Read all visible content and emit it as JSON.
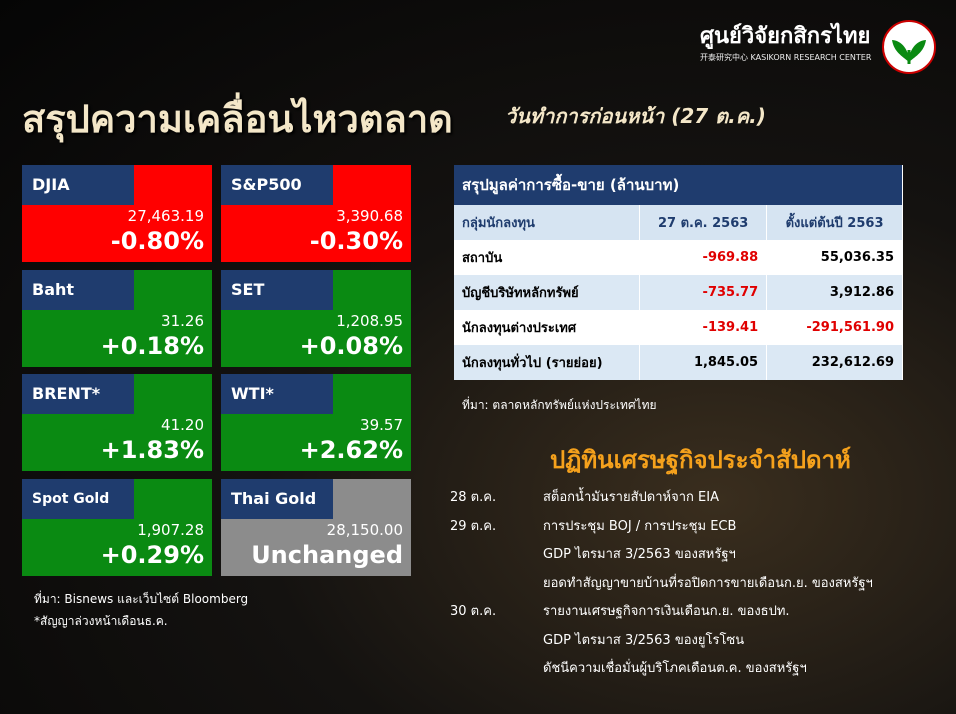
{
  "header": {
    "org_name": "ศูนย์วิจัยกสิกรไทย",
    "org_subname": "开泰研究中心 KASIKORN RESEARCH CENTER",
    "title": "สรุปความเคลื่อนไหวตลาด",
    "subtitle": "วันทำการก่อนหน้า (27 ต.ค.)"
  },
  "tiles": [
    {
      "name": "DJIA",
      "value": "27,463.19",
      "change": "-0.80%",
      "color": "#ff0000"
    },
    {
      "name": "S&P500",
      "value": "3,390.68",
      "change": "-0.30%",
      "color": "#ff0000"
    },
    {
      "name": "Baht",
      "value": "31.26",
      "change": "+0.18%",
      "color": "#0a8a12"
    },
    {
      "name": "SET",
      "value": "1,208.95",
      "change": "+0.08%",
      "color": "#0a8a12"
    },
    {
      "name": "BRENT*",
      "value": "41.20",
      "change": "+1.83%",
      "color": "#0a8a12"
    },
    {
      "name": "WTI*",
      "value": "39.57",
      "change": "+2.62%",
      "color": "#0a8a12"
    },
    {
      "name": "Spot Gold",
      "value": "1,907.28",
      "change": "+0.29%",
      "color": "#0a8a12"
    },
    {
      "name": "Thai Gold",
      "value": "28,150.00",
      "change": "Unchanged",
      "color": "#8c8c8c"
    }
  ],
  "tile_notes": [
    "ที่มา: Bisnews และเว็บไซต์ Bloomberg",
    "*สัญญาล่วงหน้าเดือนธ.ค."
  ],
  "table": {
    "title": "สรุปมูลค่าการซื้อ-ขาย (ล้านบาท)",
    "header": [
      "กลุ่มนักลงทุน",
      "27 ต.ค. 2563",
      "ตั้งแต่ต้นปี 2563"
    ],
    "rows": [
      [
        "สถาบัน",
        "-969.88",
        "55,036.35"
      ],
      [
        "บัญชีบริษัทหลักทรัพย์",
        "-735.77",
        "3,912.86"
      ],
      [
        "นักลงทุนต่างประเทศ",
        "-139.41",
        "-291,561.90"
      ],
      [
        "นักลงทุนทั่วไป (รายย่อย)",
        "1,845.05",
        "232,612.69"
      ]
    ],
    "source": "ที่มา: ตลาดหลักทรัพย์แห่งประเทศไทย"
  },
  "calendar": {
    "title": "ปฏิทินเศรษฐกิจประจำสัปดาห์",
    "entries": [
      {
        "date": "28 ต.ค.",
        "items": [
          "สต็อกน้ำมันรายสัปดาห์จาก EIA"
        ]
      },
      {
        "date": "29 ต.ค.",
        "items": [
          "การประชุม BOJ / การประชุม ECB",
          "GDP ไตรมาส 3/2563 ของสหรัฐฯ",
          "ยอดทำสัญญาขายบ้านที่รอปิดการขายเดือนก.ย. ของสหรัฐฯ"
        ]
      },
      {
        "date": "30 ต.ค.",
        "items": [
          "รายงานเศรษฐกิจการเงินเดือนก.ย. ของธปท.",
          "GDP ไตรมาส 3/2563 ของยูโรโซน",
          "ดัชนีความเชื่อมั่นผู้บริโภคเดือนต.ค. ของสหรัฐฯ"
        ]
      }
    ]
  }
}
